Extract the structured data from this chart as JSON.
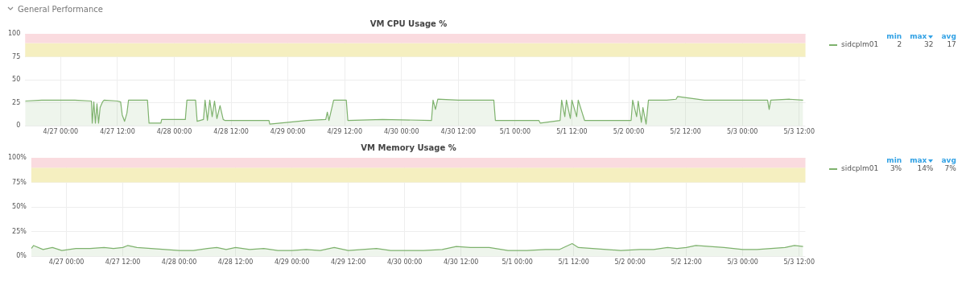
{
  "chart_data": [
    {
      "type": "other",
      "title": "General Performance"
    },
    {
      "type": "area",
      "title": "VM CPU Usage %",
      "xlim": [
        "--04-26T16:30",
        "--05-03T13:20"
      ],
      "xticks": [
        {
          "value": "--04-27T00:00",
          "label": "4/27 00:00"
        },
        {
          "value": "--04-27T12:00",
          "label": "4/27 12:00"
        },
        {
          "value": "--04-28T00:00",
          "label": "4/28 00:00"
        },
        {
          "value": "--04-28T12:00",
          "label": "4/28 12:00"
        },
        {
          "value": "--04-29T00:00",
          "label": "4/29 00:00"
        },
        {
          "value": "--04-29T12:00",
          "label": "4/29 12:00"
        },
        {
          "value": "--04-30T00:00",
          "label": "4/30 00:00"
        },
        {
          "value": "--04-30T12:00",
          "label": "4/30 12:00"
        },
        {
          "value": "--05-01T00:00",
          "label": "5/1 00:00"
        },
        {
          "value": "--05-01T12:00",
          "label": "5/1 12:00"
        },
        {
          "value": "--05-02T00:00",
          "label": "5/2 00:00"
        },
        {
          "value": "--05-02T12:00",
          "label": "5/2 12:00"
        },
        {
          "value": "--05-03T00:00",
          "label": "5/3 00:00"
        },
        {
          "value": "--05-03T12:00",
          "label": "5/3 12:00"
        }
      ],
      "ylim": [
        0,
        100
      ],
      "yticks": [
        0,
        25,
        50,
        75,
        100
      ],
      "grid": true,
      "legend": "right",
      "bands": [
        {
          "axis": "y",
          "from": 75,
          "to": 90,
          "color": "#f5efc0"
        },
        {
          "axis": "y",
          "from": 90,
          "to": 100,
          "color": "#fadbdf"
        }
      ],
      "annotations": [
        "min",
        "max",
        "avg",
        "2",
        "32",
        "17"
      ],
      "series": [
        {
          "name": "sidcplm01",
          "color": "#7eb26d",
          "x": [
            "--04-26T16:30",
            "--04-26T20:00",
            "--04-26T23:00",
            "--04-27T03:00",
            "--04-27T06:30",
            "--04-27T06:40",
            "--04-27T07:00",
            "--04-27T07:20",
            "--04-27T07:40",
            "--04-27T08:00",
            "--04-27T08:20",
            "--04-27T08:50",
            "--04-27T09:10",
            "--04-27T12:00",
            "--04-27T12:40",
            "--04-27T13:00",
            "--04-27T13:30",
            "--04-27T14:00",
            "--04-27T14:20",
            "--04-27T18:20",
            "--04-27T18:40",
            "--04-27T21:10",
            "--04-27T21:20",
            "--04-28T02:20",
            "--04-28T02:40",
            "--04-28T04:30",
            "--04-28T04:50",
            "--04-28T06:10",
            "--04-28T06:30",
            "--04-28T07:00",
            "--04-28T07:30",
            "--04-28T08:00",
            "--04-28T08:30",
            "--04-28T09:00",
            "--04-28T09:40",
            "--04-28T10:20",
            "--04-28T10:40",
            "--04-28T20:00",
            "--04-28T20:10",
            "--04-29T04:00",
            "--04-29T08:00",
            "--04-29T08:20",
            "--04-29T08:40",
            "--04-29T09:40",
            "--04-29T10:00",
            "--04-29T12:20",
            "--04-29T12:40",
            "--04-29T20:00",
            "--04-30T06:20",
            "--04-30T06:40",
            "--04-30T07:10",
            "--04-30T07:40",
            "--04-30T12:00",
            "--04-30T19:30",
            "--04-30T19:50",
            "--05-01T05:00",
            "--05-01T05:20",
            "--05-01T09:30",
            "--05-01T09:50",
            "--05-01T10:30",
            "--05-01T10:50",
            "--05-01T11:40",
            "--05-01T12:00",
            "--05-01T13:00",
            "--05-01T13:20",
            "--05-01T14:40",
            "--05-01T15:00",
            "--05-01T20:00",
            "--05-02T00:30",
            "--05-02T00:50",
            "--05-02T01:40",
            "--05-02T02:00",
            "--05-02T02:40",
            "--05-02T03:00",
            "--05-02T03:40",
            "--05-02T04:10",
            "--05-02T08:00",
            "--05-02T10:00",
            "--05-02T10:20",
            "--05-02T16:00",
            "--05-03T05:20",
            "--05-03T05:40",
            "--05-03T06:00",
            "--05-03T10:00",
            "--05-03T12:50"
          ],
          "values": [
            27,
            28,
            28,
            28,
            27,
            3,
            26,
            3,
            24,
            3,
            20,
            26,
            28,
            27,
            26,
            12,
            5,
            14,
            28,
            28,
            3,
            3,
            7,
            7,
            28,
            28,
            5,
            7,
            28,
            6,
            28,
            10,
            27,
            8,
            22,
            7,
            6,
            6,
            2,
            6,
            7,
            15,
            6,
            28,
            28,
            28,
            6,
            7,
            6,
            28,
            18,
            29,
            28,
            28,
            6,
            6,
            3,
            6,
            28,
            10,
            28,
            8,
            28,
            10,
            28,
            6,
            6,
            6,
            6,
            28,
            10,
            27,
            4,
            20,
            2,
            28,
            28,
            29,
            32,
            28,
            28,
            18,
            28,
            29,
            28
          ]
        }
      ]
    },
    {
      "type": "area",
      "title": "VM Memory Usage %",
      "xlim": [
        "--04-26T16:30",
        "--05-03T13:20"
      ],
      "xticks": [
        {
          "value": "--04-27T00:00",
          "label": "4/27 00:00"
        },
        {
          "value": "--04-27T12:00",
          "label": "4/27 12:00"
        },
        {
          "value": "--04-28T00:00",
          "label": "4/28 00:00"
        },
        {
          "value": "--04-28T12:00",
          "label": "4/28 12:00"
        },
        {
          "value": "--04-29T00:00",
          "label": "4/29 00:00"
        },
        {
          "value": "--04-29T12:00",
          "label": "4/29 12:00"
        },
        {
          "value": "--04-30T00:00",
          "label": "4/30 00:00"
        },
        {
          "value": "--04-30T12:00",
          "label": "4/30 12:00"
        },
        {
          "value": "--05-01T00:00",
          "label": "5/1 00:00"
        },
        {
          "value": "--05-01T12:00",
          "label": "5/1 12:00"
        },
        {
          "value": "--05-02T00:00",
          "label": "5/2 00:00"
        },
        {
          "value": "--05-02T12:00",
          "label": "5/2 12:00"
        },
        {
          "value": "--05-03T00:00",
          "label": "5/3 00:00"
        },
        {
          "value": "--05-03T12:00",
          "label": "5/3 12:00"
        }
      ],
      "ylim": [
        0,
        100
      ],
      "yticks": [
        {
          "value": 0,
          "label": "0%"
        },
        {
          "value": 25,
          "label": "25%"
        },
        {
          "value": 50,
          "label": "50%"
        },
        {
          "value": 75,
          "label": "75%"
        },
        {
          "value": 100,
          "label": "100%"
        }
      ],
      "grid": true,
      "legend": "right",
      "bands": [
        {
          "axis": "y",
          "from": 75,
          "to": 90,
          "color": "#f5efc0"
        },
        {
          "axis": "y",
          "from": 90,
          "to": 100,
          "color": "#fadbdf"
        }
      ],
      "annotations": [
        "min",
        "max",
        "avg",
        "3%",
        "14%",
        "7%"
      ],
      "series": [
        {
          "name": "sidcplm01",
          "color": "#7eb26d",
          "x": [
            "--04-26T16:30",
            "--04-26T17:00",
            "--04-26T19:00",
            "--04-26T21:00",
            "--04-26T23:00",
            "--04-27T02:00",
            "--04-27T05:00",
            "--04-27T08:00",
            "--04-27T10:00",
            "--04-27T12:00",
            "--04-27T13:00",
            "--04-27T15:00",
            "--04-27T18:00",
            "--04-27T21:00",
            "--04-28T00:00",
            "--04-28T03:00",
            "--04-28T06:00",
            "--04-28T08:00",
            "--04-28T10:00",
            "--04-28T12:00",
            "--04-28T15:00",
            "--04-28T18:00",
            "--04-28T21:00",
            "--04-29T00:00",
            "--04-29T03:00",
            "--04-29T06:00",
            "--04-29T09:00",
            "--04-29T12:00",
            "--04-29T15:00",
            "--04-29T18:00",
            "--04-29T21:00",
            "--04-30T00:00",
            "--04-30T04:00",
            "--04-30T08:00",
            "--04-30T11:00",
            "--04-30T14:00",
            "--04-30T18:00",
            "--04-30T22:00",
            "--05-01T02:00",
            "--05-01T06:00",
            "--05-01T09:00",
            "--05-01T11:40",
            "--05-01T13:00",
            "--05-01T16:00",
            "--05-01T19:00",
            "--05-01T22:00",
            "--05-02T02:00",
            "--05-02T05:00",
            "--05-02T08:00",
            "--05-02T10:00",
            "--05-02T12:00",
            "--05-02T14:00",
            "--05-02T17:00",
            "--05-02T20:00",
            "--05-03T00:00",
            "--05-03T03:00",
            "--05-03T06:00",
            "--05-03T09:00",
            "--05-03T11:00",
            "--05-03T12:50"
          ],
          "values": [
            8,
            11,
            7,
            9,
            6,
            8,
            8,
            9,
            8,
            9,
            11,
            9,
            8,
            7,
            6,
            6,
            8,
            9,
            7,
            9,
            7,
            8,
            6,
            6,
            7,
            6,
            9,
            6,
            7,
            8,
            6,
            6,
            6,
            7,
            10,
            9,
            9,
            6,
            6,
            7,
            7,
            13,
            9,
            8,
            7,
            6,
            7,
            7,
            9,
            8,
            9,
            11,
            10,
            9,
            7,
            7,
            8,
            9,
            11,
            10
          ]
        }
      ]
    }
  ]
}
